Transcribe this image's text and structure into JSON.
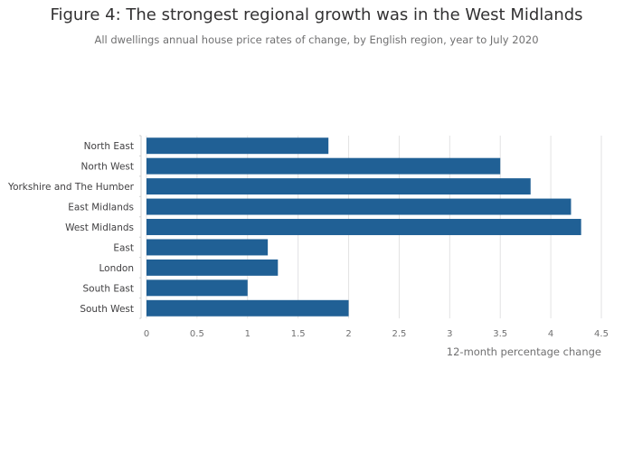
{
  "chart_data": {
    "type": "bar",
    "orientation": "horizontal",
    "title": "Figure 4: The strongest regional growth was in the West Midlands",
    "subtitle": "All dwellings annual house price rates of change, by English region, year to July 2020",
    "categories": [
      "North East",
      "North West",
      "Yorkshire and The Humber",
      "East Midlands",
      "West Midlands",
      "East",
      "London",
      "South East",
      "South West"
    ],
    "values": [
      1.8,
      3.5,
      3.8,
      4.2,
      4.3,
      1.2,
      1.3,
      1.0,
      2.0
    ],
    "xlabel": "12-month percentage change",
    "ylabel": "",
    "xlim": [
      0,
      4.5
    ],
    "xticks": [
      "0",
      "0.5",
      "1",
      "1.5",
      "2",
      "2.5",
      "3",
      "3.5",
      "4",
      "4.5"
    ],
    "grid": true,
    "bar_color": "#206095"
  }
}
